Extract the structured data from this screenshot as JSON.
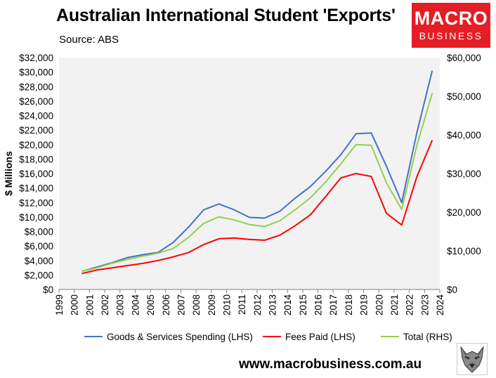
{
  "header": {
    "title": "Australian International Student 'Exports'",
    "source": "Source: ABS"
  },
  "logo": {
    "line1": "MACRO",
    "line2": "BUSINESS"
  },
  "footer": {
    "website": "www.macrobusiness.com.au"
  },
  "colors": {
    "goods_services": "#4472c4",
    "fees": "#ff0000",
    "total": "#92d050",
    "plot_bg": "#f2f2f2",
    "logo_bg": "#e31e24"
  },
  "icons": {
    "wolf": "wolf-logo-icon"
  },
  "chart_data": {
    "type": "line",
    "title": "Australian International Student 'Exports'",
    "ylabel": "$ Millions",
    "x_ticks": [
      "1999",
      "2000",
      "2001",
      "2002",
      "2003",
      "2004",
      "2005",
      "2006",
      "2007",
      "2008",
      "2009",
      "2010",
      "2011",
      "2012",
      "2013",
      "2014",
      "2015",
      "2016",
      "2017",
      "2018",
      "2019",
      "2020",
      "2021",
      "2022",
      "2023",
      "2024"
    ],
    "y_left_ticks": [
      "$0",
      "$2,000",
      "$4,000",
      "$6,000",
      "$8,000",
      "$10,000",
      "$12,000",
      "$14,000",
      "$16,000",
      "$18,000",
      "$20,000",
      "$22,000",
      "$24,000",
      "$26,000",
      "$28,000",
      "$30,000",
      "$32,000"
    ],
    "y_right_ticks": [
      "$0",
      "$10,000",
      "$20,000",
      "$30,000",
      "$40,000",
      "$50,000",
      "$60,000"
    ],
    "ylim_left": [
      0,
      32000
    ],
    "ylim_right": [
      0,
      60000
    ],
    "legend_position": "bottom",
    "grid": false,
    "x": [
      2000.5,
      2001.5,
      2002.5,
      2003.5,
      2004.5,
      2005.5,
      2006.5,
      2007.5,
      2008.5,
      2009.5,
      2010.5,
      2011.5,
      2012.5,
      2013.5,
      2014.5,
      2015.5,
      2016.5,
      2017.5,
      2018.5,
      2019.5,
      2020.5,
      2021.5,
      2022.5,
      2023.5
    ],
    "series": [
      {
        "name": "Goods & Services Spending (LHS)",
        "axis": "left",
        "color": "#4472c4",
        "values": [
          2500,
          3100,
          3700,
          4400,
          4800,
          5100,
          6500,
          8600,
          11000,
          11800,
          11000,
          9950,
          9850,
          10800,
          12600,
          14200,
          16300,
          18600,
          21500,
          21600,
          17000,
          12000,
          21700,
          30200
        ]
      },
      {
        "name": "Fees Paid (LHS)",
        "axis": "left",
        "color": "#ff0000",
        "values": [
          2200,
          2700,
          3000,
          3300,
          3600,
          4000,
          4500,
          5100,
          6200,
          7000,
          7100,
          6900,
          6800,
          7500,
          8800,
          10300,
          12800,
          15400,
          16000,
          15600,
          10500,
          8900,
          15600,
          20600
        ]
      },
      {
        "name": "Total (RHS)",
        "axis": "right",
        "color": "#92d050",
        "values": [
          4700,
          5600,
          6800,
          7800,
          8600,
          9400,
          10600,
          13500,
          17100,
          18800,
          18000,
          16800,
          16300,
          17800,
          20600,
          23700,
          27800,
          32500,
          37500,
          37300,
          27600,
          20700,
          37400,
          50800
        ]
      }
    ]
  }
}
